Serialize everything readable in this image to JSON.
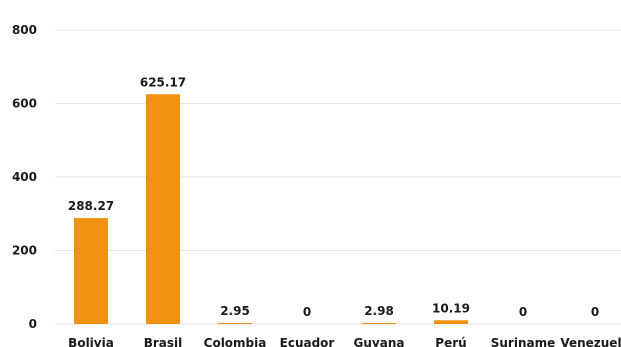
{
  "chart_data": {
    "type": "bar",
    "categories": [
      "Bolivia",
      "Brasil",
      "Colombia",
      "Ecuador",
      "Guyana",
      "Perú",
      "Suriname",
      "Venezuela"
    ],
    "values": [
      288.27,
      625.17,
      2.95,
      0,
      2.98,
      10.19,
      0,
      0
    ],
    "data_labels": [
      "288.27",
      "625.17",
      "2.95",
      "0",
      "2.98",
      "10.19",
      "0",
      "0"
    ],
    "yticks": [
      "800",
      "600",
      "400",
      "200",
      "0"
    ],
    "ylim": [
      0,
      800
    ],
    "grid": true,
    "bar_color": "#f0920f",
    "grid_color": "#e6e6e6"
  }
}
